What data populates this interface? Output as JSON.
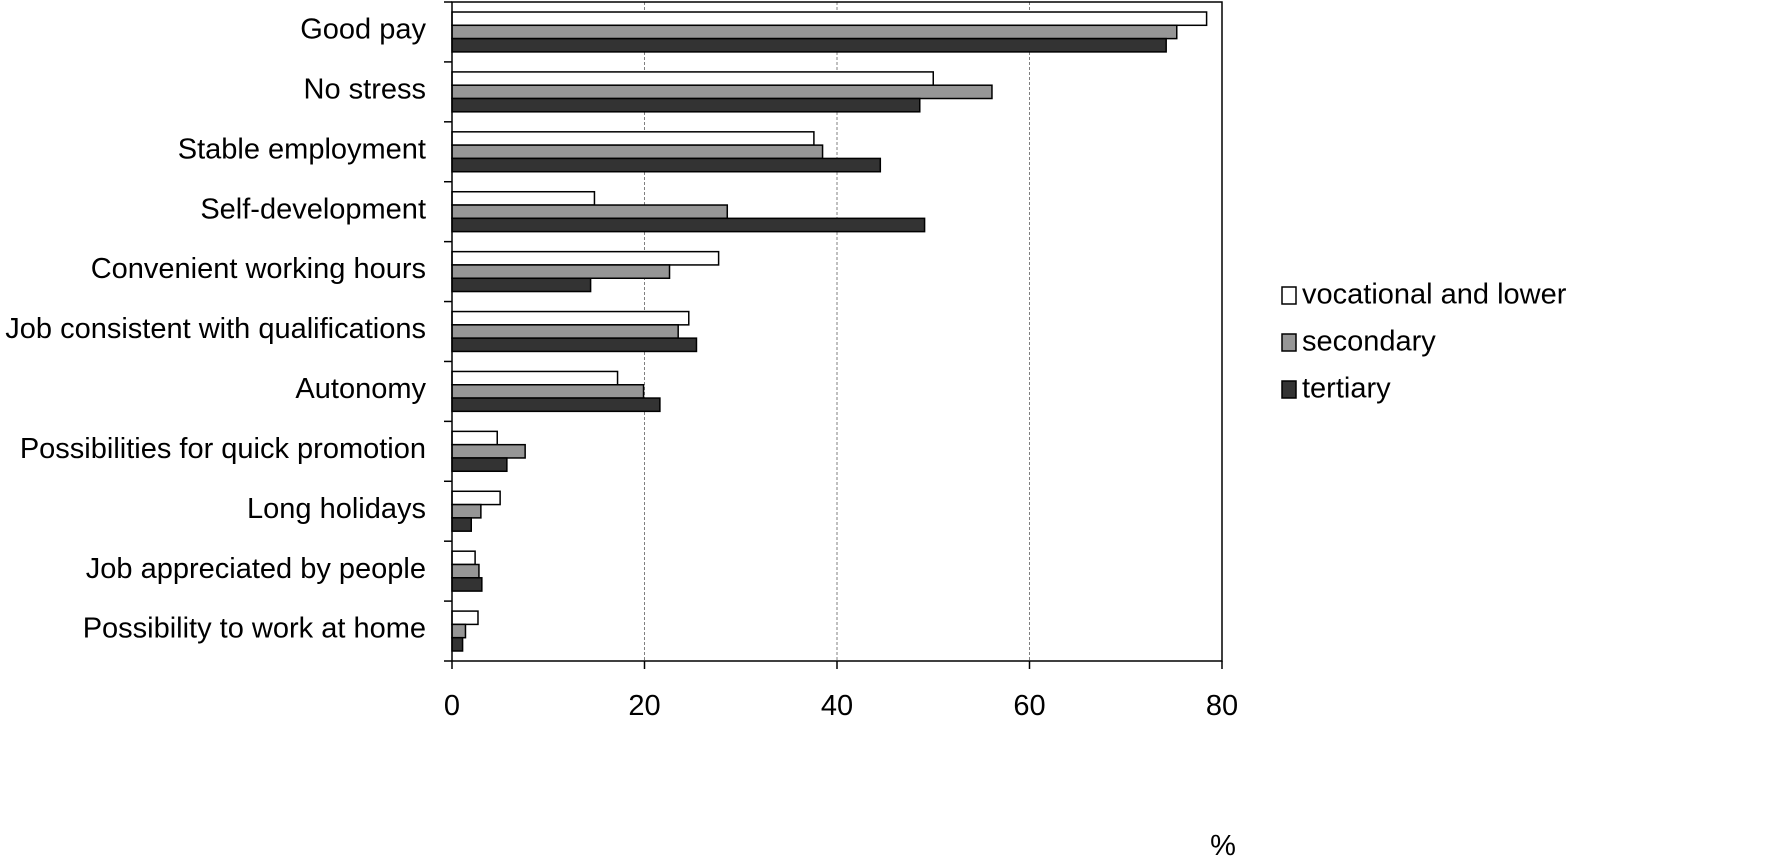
{
  "chart_data": {
    "type": "bar",
    "orientation": "horizontal",
    "title": "",
    "xlabel": "%",
    "ylabel": "",
    "xlim": [
      0,
      80
    ],
    "x_ticks": [
      0,
      20,
      40,
      60,
      80
    ],
    "grid": "vertical dashed",
    "legend_position": "right",
    "categories": [
      "Good pay",
      "No stress",
      "Stable employment",
      "Self-development",
      "Convenient working hours",
      "Job consistent with qualifications",
      "Autonomy",
      "Possibilities for quick promotion",
      "Long holidays",
      "Job appreciated by people",
      "Possibility to work at home"
    ],
    "series": [
      {
        "name": "vocational and lower",
        "color": "#ffffff",
        "values": [
          78.4,
          50.0,
          37.6,
          14.8,
          27.7,
          24.6,
          17.2,
          4.7,
          5.0,
          2.4,
          2.7
        ]
      },
      {
        "name": "secondary",
        "color": "#969696",
        "values": [
          75.3,
          56.1,
          38.5,
          28.6,
          22.6,
          23.5,
          19.9,
          7.6,
          3.0,
          2.8,
          1.4
        ]
      },
      {
        "name": "tertiary",
        "color": "#333333",
        "values": [
          74.2,
          48.6,
          44.5,
          49.1,
          14.4,
          25.4,
          21.6,
          5.7,
          2.0,
          3.1,
          1.1
        ]
      }
    ]
  }
}
